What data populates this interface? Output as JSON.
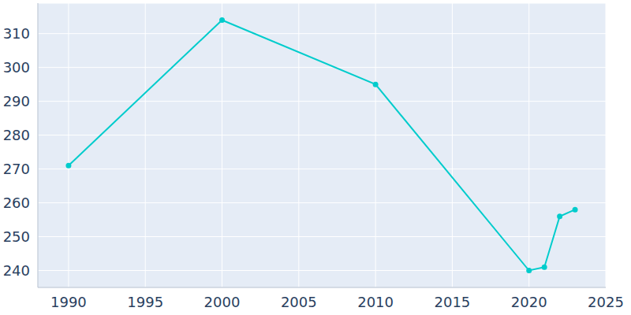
{
  "chart_data": {
    "type": "line",
    "x": [
      1990,
      2000,
      2010,
      2020,
      2021,
      2022,
      2023
    ],
    "values": [
      271,
      314,
      295,
      240,
      241,
      256,
      258
    ],
    "color": "#00cccc",
    "xlim": [
      1988,
      2025
    ],
    "ylim": [
      235,
      319
    ],
    "xticks": [
      1990,
      1995,
      2000,
      2005,
      2010,
      2015,
      2020,
      2025
    ],
    "yticks": [
      240,
      250,
      260,
      270,
      280,
      290,
      300,
      310
    ],
    "grid": true,
    "marker": "circle"
  }
}
